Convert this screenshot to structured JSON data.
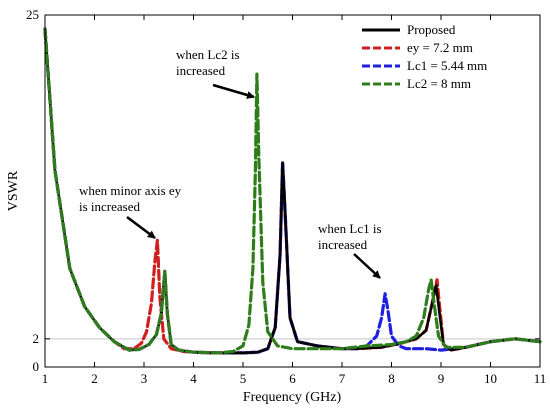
{
  "chart_data": {
    "type": "line",
    "xlabel": "Frequency (GHz)",
    "ylabel": "VSWR",
    "xlim": [
      1,
      11
    ],
    "ylim": [
      0,
      25
    ],
    "x_ticks": [
      "1",
      "2",
      "3",
      "4",
      "5",
      "6",
      "7",
      "8",
      "9",
      "10",
      "11"
    ],
    "y_ticks": [
      "0",
      "2",
      "25"
    ],
    "y_tick_values": [
      0,
      2,
      25
    ],
    "legend_position": "top-right",
    "series": [
      {
        "name": "Proposed",
        "color": "#000000",
        "dash": "solid",
        "points": [
          [
            1,
            24
          ],
          [
            1.2,
            14
          ],
          [
            1.5,
            7
          ],
          [
            1.8,
            4.3
          ],
          [
            2.1,
            2.8
          ],
          [
            2.4,
            1.8
          ],
          [
            2.7,
            1.2
          ],
          [
            2.9,
            1.25
          ],
          [
            3.1,
            1.6
          ],
          [
            3.25,
            2.3
          ],
          [
            3.35,
            3.8
          ],
          [
            3.42,
            6.8
          ],
          [
            3.47,
            3.8
          ],
          [
            3.55,
            1.6
          ],
          [
            3.7,
            1.2
          ],
          [
            4.0,
            1.05
          ],
          [
            4.5,
            1.0
          ],
          [
            5.0,
            1.0
          ],
          [
            5.3,
            1.05
          ],
          [
            5.5,
            1.3
          ],
          [
            5.65,
            2.8
          ],
          [
            5.75,
            8
          ],
          [
            5.8,
            14.5
          ],
          [
            5.85,
            11
          ],
          [
            5.95,
            3.5
          ],
          [
            6.1,
            1.8
          ],
          [
            6.5,
            1.5
          ],
          [
            7.0,
            1.3
          ],
          [
            7.3,
            1.3
          ],
          [
            7.8,
            1.4
          ],
          [
            8.2,
            1.7
          ],
          [
            8.5,
            2.0
          ],
          [
            8.7,
            2.6
          ],
          [
            8.82,
            4.5
          ],
          [
            8.9,
            5.8
          ],
          [
            8.97,
            3.8
          ],
          [
            9.05,
            1.6
          ],
          [
            9.2,
            1.2
          ],
          [
            9.5,
            1.4
          ],
          [
            10.0,
            1.8
          ],
          [
            10.5,
            2.0
          ],
          [
            11,
            1.8
          ]
        ]
      },
      {
        "name": "ey = 7.2 mm",
        "color": "#d01f1f",
        "dash": "dash",
        "points": [
          [
            1,
            24
          ],
          [
            1.2,
            14
          ],
          [
            1.5,
            7
          ],
          [
            1.8,
            4.3
          ],
          [
            2.1,
            2.8
          ],
          [
            2.4,
            1.8
          ],
          [
            2.6,
            1.3
          ],
          [
            2.8,
            1.3
          ],
          [
            2.95,
            1.7
          ],
          [
            3.05,
            2.5
          ],
          [
            3.15,
            4.5
          ],
          [
            3.22,
            7.5
          ],
          [
            3.27,
            9.0
          ],
          [
            3.32,
            5
          ],
          [
            3.4,
            2.0
          ],
          [
            3.55,
            1.3
          ],
          [
            3.8,
            1.1
          ],
          [
            4.3,
            1.0
          ],
          [
            5.0,
            1.0
          ],
          [
            5.3,
            1.05
          ],
          [
            5.5,
            1.3
          ],
          [
            5.65,
            2.8
          ],
          [
            5.75,
            8
          ],
          [
            5.8,
            14.5
          ],
          [
            5.85,
            11
          ],
          [
            5.95,
            3.5
          ],
          [
            6.1,
            1.8
          ],
          [
            6.5,
            1.5
          ],
          [
            7.0,
            1.3
          ],
          [
            7.3,
            1.3
          ],
          [
            7.8,
            1.4
          ],
          [
            8.2,
            1.7
          ],
          [
            8.5,
            2.0
          ],
          [
            8.7,
            2.6
          ],
          [
            8.82,
            4.5
          ],
          [
            8.92,
            6.2
          ],
          [
            8.98,
            4.0
          ],
          [
            9.05,
            1.6
          ],
          [
            9.2,
            1.2
          ],
          [
            9.5,
            1.4
          ],
          [
            10.0,
            1.8
          ],
          [
            10.5,
            2.0
          ],
          [
            11,
            1.8
          ]
        ]
      },
      {
        "name": "Lc1 = 5.44 mm",
        "color": "#1f1fe0",
        "dash": "dash",
        "points": [
          [
            1,
            24
          ],
          [
            1.2,
            14
          ],
          [
            1.5,
            7
          ],
          [
            1.8,
            4.3
          ],
          [
            2.1,
            2.8
          ],
          [
            2.4,
            1.8
          ],
          [
            2.7,
            1.2
          ],
          [
            2.9,
            1.25
          ],
          [
            3.1,
            1.6
          ],
          [
            3.25,
            2.3
          ],
          [
            3.35,
            3.8
          ],
          [
            3.42,
            6.8
          ],
          [
            3.47,
            3.8
          ],
          [
            3.55,
            1.6
          ],
          [
            3.7,
            1.2
          ],
          [
            4.0,
            1.05
          ],
          [
            4.5,
            1.0
          ],
          [
            5.0,
            1.0
          ],
          [
            5.3,
            1.05
          ],
          [
            5.5,
            1.3
          ],
          [
            5.65,
            2.8
          ],
          [
            5.75,
            8
          ],
          [
            5.8,
            14.6
          ],
          [
            5.85,
            11
          ],
          [
            5.95,
            3.5
          ],
          [
            6.1,
            1.8
          ],
          [
            6.5,
            1.5
          ],
          [
            7.0,
            1.3
          ],
          [
            7.3,
            1.3
          ],
          [
            7.5,
            1.5
          ],
          [
            7.7,
            2.2
          ],
          [
            7.8,
            3.5
          ],
          [
            7.87,
            5.2
          ],
          [
            7.93,
            4.0
          ],
          [
            8.0,
            2.2
          ],
          [
            8.15,
            1.5
          ],
          [
            8.3,
            1.3
          ],
          [
            8.5,
            1.3
          ],
          [
            8.7,
            1.3
          ],
          [
            9.0,
            1.2
          ],
          [
            9.5,
            1.4
          ],
          [
            10.0,
            1.8
          ],
          [
            10.5,
            2.0
          ],
          [
            11,
            1.8
          ]
        ]
      },
      {
        "name": "Lc2 = 8 mm",
        "color": "#2e7d1a",
        "dash": "dash",
        "points": [
          [
            1,
            24
          ],
          [
            1.2,
            14
          ],
          [
            1.5,
            7
          ],
          [
            1.8,
            4.3
          ],
          [
            2.1,
            2.8
          ],
          [
            2.4,
            1.8
          ],
          [
            2.7,
            1.2
          ],
          [
            2.9,
            1.25
          ],
          [
            3.1,
            1.6
          ],
          [
            3.25,
            2.3
          ],
          [
            3.35,
            3.8
          ],
          [
            3.42,
            6.8
          ],
          [
            3.47,
            3.8
          ],
          [
            3.55,
            1.6
          ],
          [
            3.7,
            1.2
          ],
          [
            4.0,
            1.05
          ],
          [
            4.5,
            1.0
          ],
          [
            4.8,
            1.1
          ],
          [
            5.0,
            1.5
          ],
          [
            5.12,
            3.0
          ],
          [
            5.2,
            7.0
          ],
          [
            5.25,
            14.0
          ],
          [
            5.28,
            20.8
          ],
          [
            5.32,
            15
          ],
          [
            5.4,
            6
          ],
          [
            5.5,
            2.5
          ],
          [
            5.7,
            1.5
          ],
          [
            6.0,
            1.3
          ],
          [
            6.5,
            1.3
          ],
          [
            7.0,
            1.3
          ],
          [
            7.5,
            1.5
          ],
          [
            8.0,
            1.6
          ],
          [
            8.3,
            1.8
          ],
          [
            8.5,
            2.2
          ],
          [
            8.65,
            3.5
          ],
          [
            8.75,
            5.5
          ],
          [
            8.8,
            6.2
          ],
          [
            8.86,
            4.5
          ],
          [
            8.95,
            2.2
          ],
          [
            9.1,
            1.4
          ],
          [
            9.5,
            1.4
          ],
          [
            10.0,
            1.8
          ],
          [
            10.5,
            2.0
          ],
          [
            11,
            1.8
          ]
        ]
      }
    ],
    "annotations": [
      {
        "lines": [
          "when minor axis ey",
          "is increased"
        ]
      },
      {
        "lines": [
          "when Lc2 is",
          "increased"
        ]
      },
      {
        "lines": [
          "when Lc1 is",
          "increased"
        ]
      }
    ]
  }
}
